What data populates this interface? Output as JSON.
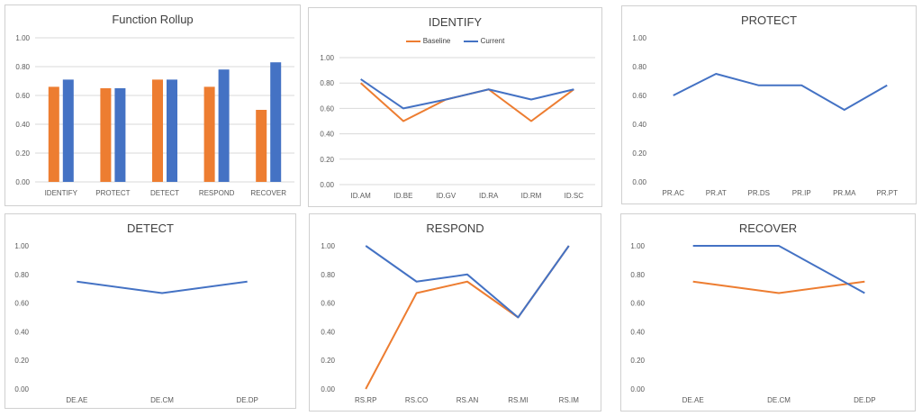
{
  "colors": {
    "baseline": "#ED7D31",
    "current": "#4472C4",
    "grid": "#D9D9D9",
    "text": "#595959"
  },
  "chart_data": [
    {
      "type": "bar",
      "title": "Function Rollup",
      "categories": [
        "IDENTIFY",
        "PROTECT",
        "DETECT",
        "RESPOND",
        "RECOVER"
      ],
      "series": [
        {
          "values": [
            0.66,
            0.65,
            0.71,
            0.66,
            0.5
          ]
        },
        {
          "values": [
            0.71,
            0.65,
            0.71,
            0.78,
            0.83
          ]
        }
      ],
      "ylim": [
        0,
        1.0
      ],
      "yticks": [
        "0.00",
        "0.20",
        "0.40",
        "0.60",
        "0.80",
        "1.00"
      ],
      "grid": true
    },
    {
      "type": "line",
      "title": "IDENTIFY",
      "legend": "top",
      "categories": [
        "ID.AM",
        "ID.BE",
        "ID.GV",
        "ID.RA",
        "ID.RM",
        "ID.SC"
      ],
      "series": [
        {
          "name": "Baseline",
          "values": [
            0.8,
            0.5,
            0.67,
            0.75,
            0.5,
            0.75
          ]
        },
        {
          "name": "Current",
          "values": [
            0.83,
            0.6,
            0.67,
            0.75,
            0.67,
            0.75
          ]
        }
      ],
      "ylim": [
        0,
        1.0
      ],
      "yticks": [
        "0.00",
        "0.20",
        "0.40",
        "0.60",
        "0.80",
        "1.00"
      ],
      "grid": true
    },
    {
      "type": "line",
      "title": "PROTECT",
      "categories": [
        "PR.AC",
        "PR.AT",
        "PR.DS",
        "PR.IP",
        "PR.MA",
        "PR.PT"
      ],
      "series": [
        {
          "values": [
            0.6,
            0.75,
            0.67,
            0.67,
            0.5,
            0.67
          ]
        }
      ],
      "ylim": [
        0,
        1.0
      ],
      "yticks": [
        "0.00",
        "0.20",
        "0.40",
        "0.60",
        "0.80",
        "1.00"
      ],
      "grid": false
    },
    {
      "type": "line",
      "title": "DETECT",
      "categories": [
        "DE.AE",
        "DE.CM",
        "DE.DP"
      ],
      "series": [
        {
          "values": [
            0.75,
            0.67,
            0.75
          ]
        }
      ],
      "ylim": [
        0,
        1.0
      ],
      "yticks": [
        "0.00",
        "0.20",
        "0.40",
        "0.60",
        "0.80",
        "1.00"
      ],
      "grid": false
    },
    {
      "type": "line",
      "title": "RESPOND",
      "categories": [
        "RS.RP",
        "RS.CO",
        "RS.AN",
        "RS.MI",
        "RS.IM"
      ],
      "series": [
        {
          "values": [
            0.0,
            0.67,
            0.75,
            0.5,
            1.0
          ]
        },
        {
          "values": [
            1.0,
            0.75,
            0.8,
            0.5,
            1.0
          ]
        }
      ],
      "ylim": [
        0,
        1.0
      ],
      "yticks": [
        "0.00",
        "0.20",
        "0.40",
        "0.60",
        "0.80",
        "1.00"
      ],
      "grid": false
    },
    {
      "type": "line",
      "title": "RECOVER",
      "categories": [
        "DE.AE",
        "DE.CM",
        "DE.DP"
      ],
      "series": [
        {
          "values": [
            0.75,
            0.67,
            0.75
          ]
        },
        {
          "values": [
            1.0,
            1.0,
            0.67
          ]
        }
      ],
      "ylim": [
        0,
        1.0
      ],
      "yticks": [
        "0.00",
        "0.20",
        "0.40",
        "0.60",
        "0.80",
        "1.00"
      ],
      "grid": false
    }
  ]
}
